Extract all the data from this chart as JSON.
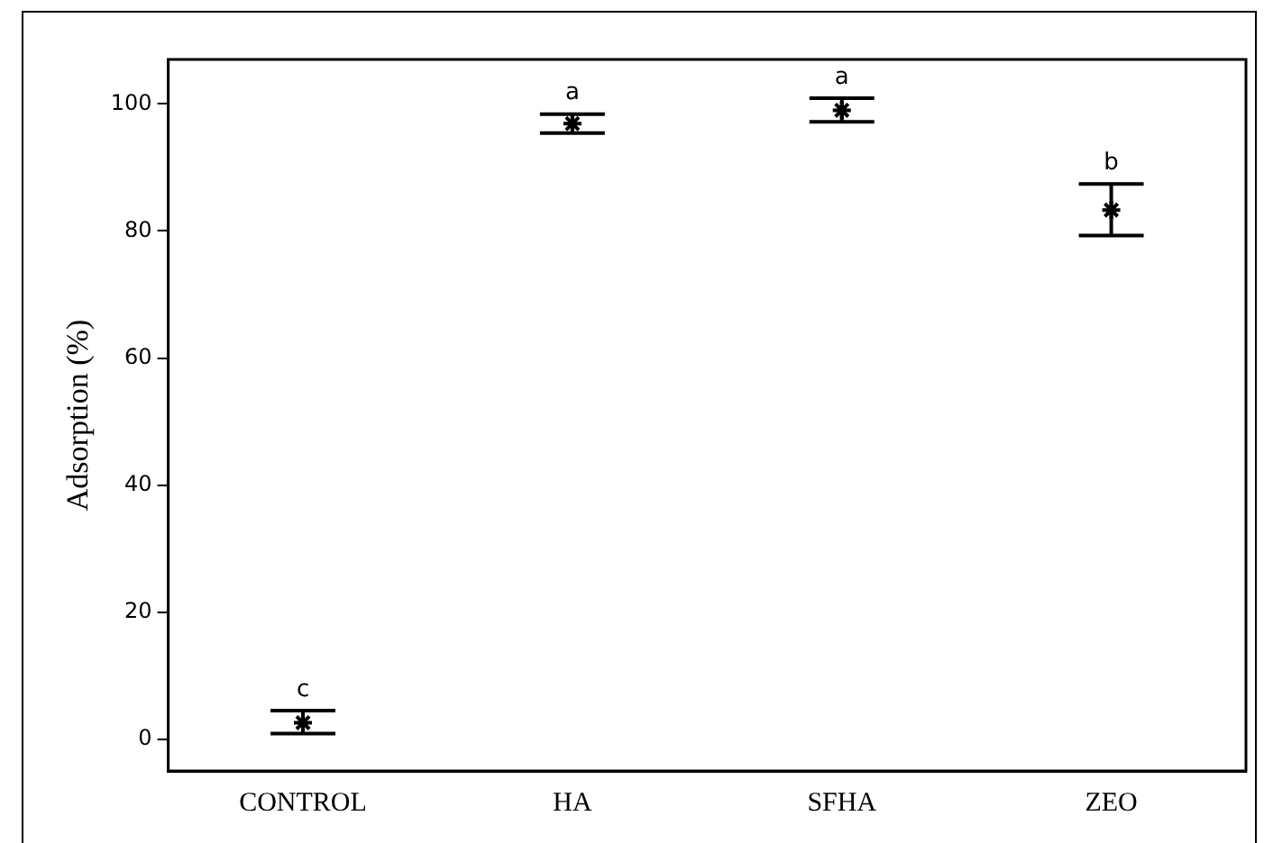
{
  "chart_data": {
    "type": "scatter",
    "ylabel": "Adsorption (%)",
    "categories": [
      "CONTROL",
      "HA",
      "SFHA",
      "ZEO"
    ],
    "series": [
      {
        "color": "#000000",
        "values": [
          2.6,
          96.9,
          99.0,
          83.3
        ],
        "errors": [
          [
            0.9,
            4.5
          ],
          [
            95.4,
            98.4
          ],
          [
            97.2,
            100.9
          ],
          [
            79.3,
            87.4
          ]
        ]
      }
    ],
    "ylim": [
      -5,
      107
    ],
    "yticks": [
      0,
      20,
      40,
      60,
      80,
      100
    ],
    "grid": false,
    "legend": false,
    "marker": "cross",
    "annotations": [
      {
        "text": "c",
        "x": "CONTROL",
        "y": 4.5
      },
      {
        "text": "a",
        "x": "HA",
        "y": 98.4
      },
      {
        "text": "a",
        "x": "SFHA",
        "y": 100.9
      },
      {
        "text": "b",
        "x": "ZEO",
        "y": 87.4
      }
    ]
  }
}
